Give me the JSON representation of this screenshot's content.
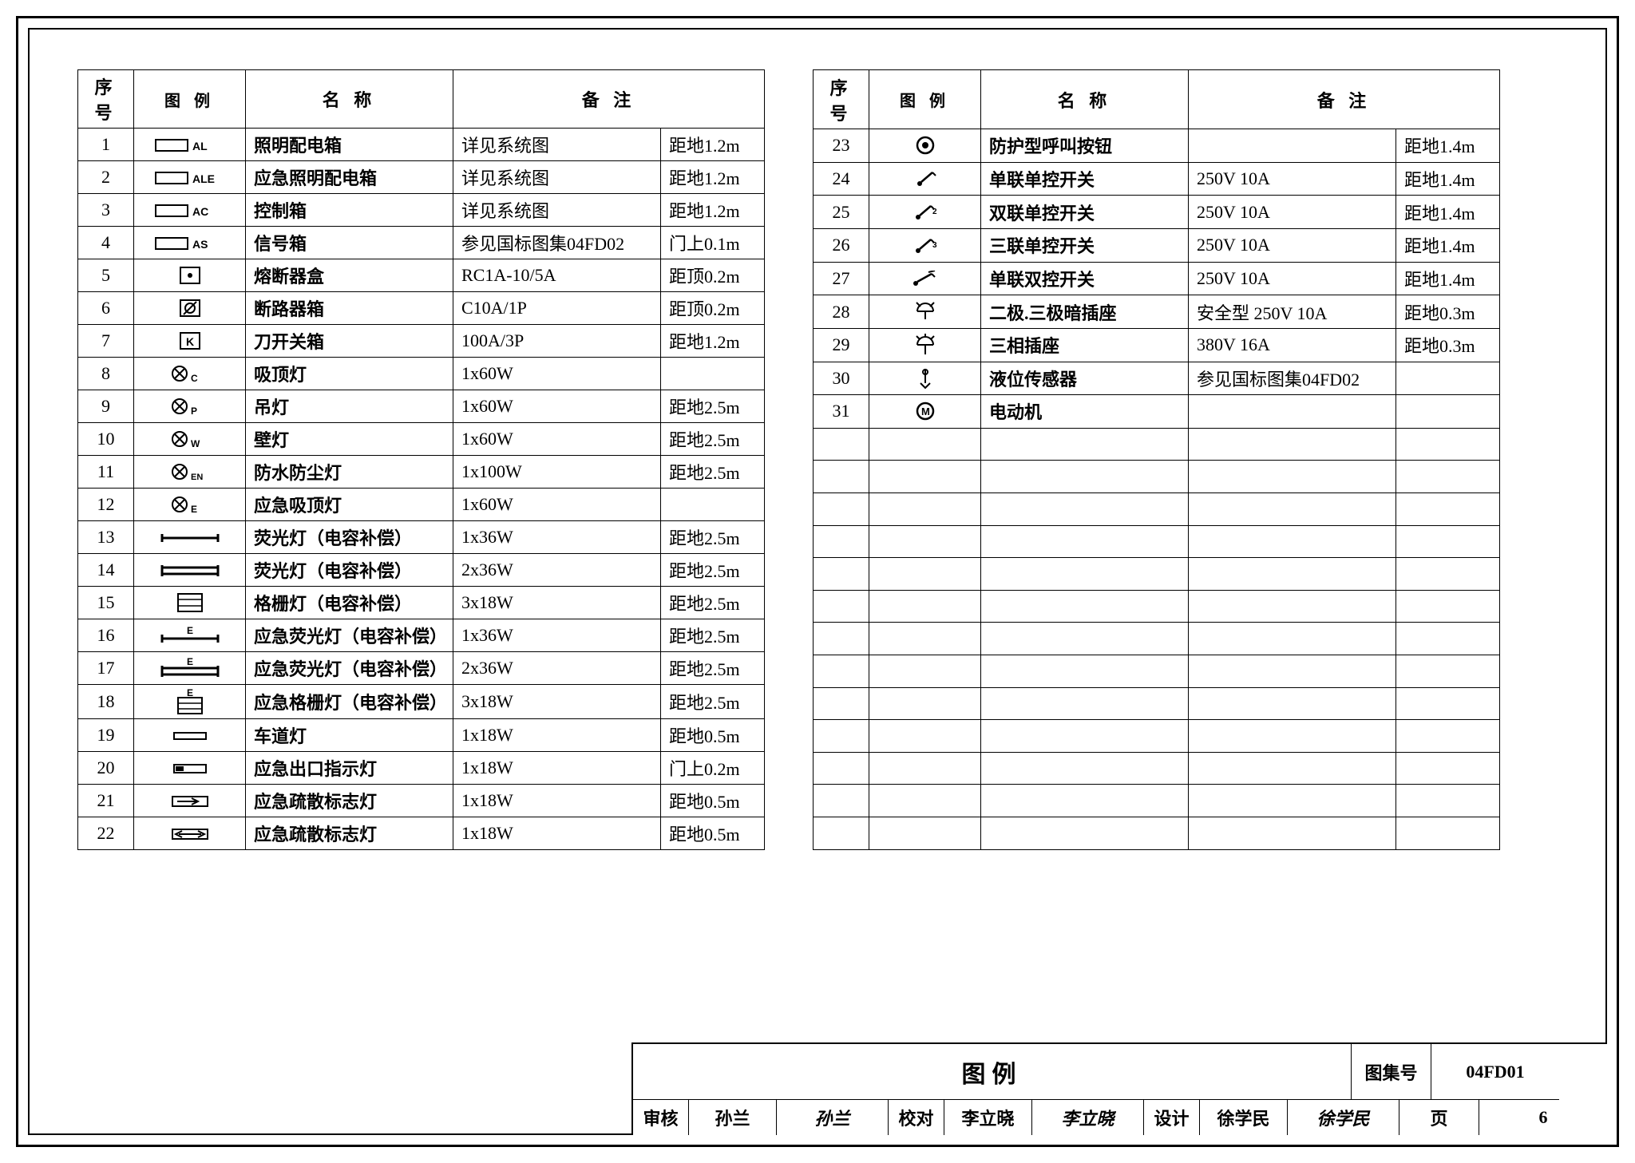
{
  "headers": {
    "seq": "序 号",
    "sym": "图 例",
    "name": "名  称",
    "note": "备  注"
  },
  "leftRows": [
    {
      "n": "1",
      "sym": "rect-AL",
      "name": "照明配电箱",
      "note": "详见系统图",
      "ht": "距地1.2m"
    },
    {
      "n": "2",
      "sym": "rect-ALE",
      "name": "应急照明配电箱",
      "note": "详见系统图",
      "ht": "距地1.2m"
    },
    {
      "n": "3",
      "sym": "rect-AC",
      "name": "控制箱",
      "note": "详见系统图",
      "ht": "距地1.2m"
    },
    {
      "n": "4",
      "sym": "rect-AS",
      "name": "信号箱",
      "note": "参见国标图集04FD02",
      "ht": "门上0.1m"
    },
    {
      "n": "5",
      "sym": "box-dot",
      "name": "熔断器盒",
      "note": "RC1A-10/5A",
      "ht": "距顶0.2m"
    },
    {
      "n": "6",
      "sym": "box-slash",
      "name": "断路器箱",
      "note": "C10A/1P",
      "ht": "距顶0.2m"
    },
    {
      "n": "7",
      "sym": "box-K",
      "name": "刀开关箱",
      "note": "100A/3P",
      "ht": "距地1.2m"
    },
    {
      "n": "8",
      "sym": "lamp-C",
      "name": "吸顶灯",
      "note": "1x60W",
      "ht": ""
    },
    {
      "n": "9",
      "sym": "lamp-P",
      "name": "吊灯",
      "note": "1x60W",
      "ht": "距地2.5m"
    },
    {
      "n": "10",
      "sym": "lamp-W",
      "name": "壁灯",
      "note": "1x60W",
      "ht": "距地2.5m"
    },
    {
      "n": "11",
      "sym": "lamp-EN",
      "name": "防水防尘灯",
      "note": "1x100W",
      "ht": "距地2.5m"
    },
    {
      "n": "12",
      "sym": "lamp-E",
      "name": "应急吸顶灯",
      "note": "1x60W",
      "ht": ""
    },
    {
      "n": "13",
      "sym": "fl1",
      "name": "荧光灯（电容补偿）",
      "note": "1x36W",
      "ht": "距地2.5m"
    },
    {
      "n": "14",
      "sym": "fl2",
      "name": "荧光灯（电容补偿）",
      "note": "2x36W",
      "ht": "距地2.5m"
    },
    {
      "n": "15",
      "sym": "grid3",
      "name": "格栅灯（电容补偿）",
      "note": "3x18W",
      "ht": "距地2.5m"
    },
    {
      "n": "16",
      "sym": "fl1-E",
      "name": "应急荧光灯（电容补偿）",
      "note": "1x36W",
      "ht": "距地2.5m"
    },
    {
      "n": "17",
      "sym": "fl2-E",
      "name": "应急荧光灯（电容补偿）",
      "note": "2x36W",
      "ht": "距地2.5m"
    },
    {
      "n": "18",
      "sym": "grid3-E",
      "name": "应急格栅灯（电容补偿）",
      "note": "3x18W",
      "ht": "距地2.5m"
    },
    {
      "n": "19",
      "sym": "rect-thin",
      "name": "车道灯",
      "note": "1x18W",
      "ht": "距地0.5m"
    },
    {
      "n": "20",
      "sym": "rect-fill",
      "name": "应急出口指示灯",
      "note": "1x18W",
      "ht": "门上0.2m"
    },
    {
      "n": "21",
      "sym": "arrow-r",
      "name": "应急疏散标志灯",
      "note": "1x18W",
      "ht": "距地0.5m"
    },
    {
      "n": "22",
      "sym": "arrow-lr",
      "name": "应急疏散标志灯",
      "note": "1x18W",
      "ht": "距地0.5m"
    }
  ],
  "rightRows": [
    {
      "n": "23",
      "sym": "target",
      "name": "防护型呼叫按钮",
      "note": "",
      "ht": "距地1.4m"
    },
    {
      "n": "24",
      "sym": "sw1",
      "name": "单联单控开关",
      "note": "250V 10A",
      "ht": "距地1.4m"
    },
    {
      "n": "25",
      "sym": "sw2",
      "name": "双联单控开关",
      "note": "250V 10A",
      "ht": "距地1.4m"
    },
    {
      "n": "26",
      "sym": "sw3",
      "name": "三联单控开关",
      "note": "250V 10A",
      "ht": "距地1.4m"
    },
    {
      "n": "27",
      "sym": "sw-dbl",
      "name": "单联双控开关",
      "note": "250V 10A",
      "ht": "距地1.4m"
    },
    {
      "n": "28",
      "sym": "socket23",
      "name": "二极.三极暗插座",
      "note": "安全型 250V 10A",
      "ht": "距地0.3m"
    },
    {
      "n": "29",
      "sym": "socket3p",
      "name": "三相插座",
      "note": "380V 16A",
      "ht": "距地0.3m"
    },
    {
      "n": "30",
      "sym": "levelsensor",
      "name": "液位传感器",
      "note": "参见国标图集04FD02",
      "ht": ""
    },
    {
      "n": "31",
      "sym": "motor",
      "name": "电动机",
      "note": "",
      "ht": ""
    }
  ],
  "rightBlankRows": 13,
  "titleblock": {
    "title": "图例",
    "labelSet": "图集号",
    "valSet": "04FD01",
    "row2": [
      {
        "w": "w70",
        "t": "审核"
      },
      {
        "w": "w110",
        "t": "孙兰"
      },
      {
        "w": "w140 sig",
        "t": "孙兰"
      },
      {
        "w": "w70",
        "t": "校对"
      },
      {
        "w": "w110",
        "t": "李立晓"
      },
      {
        "w": "w140 sig",
        "t": "李立晓"
      },
      {
        "w": "w70",
        "t": "设计"
      },
      {
        "w": "w110",
        "t": "徐学民"
      },
      {
        "w": "w140 sig",
        "t": "徐学民"
      }
    ],
    "labelPage": "页",
    "valPage": "6"
  }
}
